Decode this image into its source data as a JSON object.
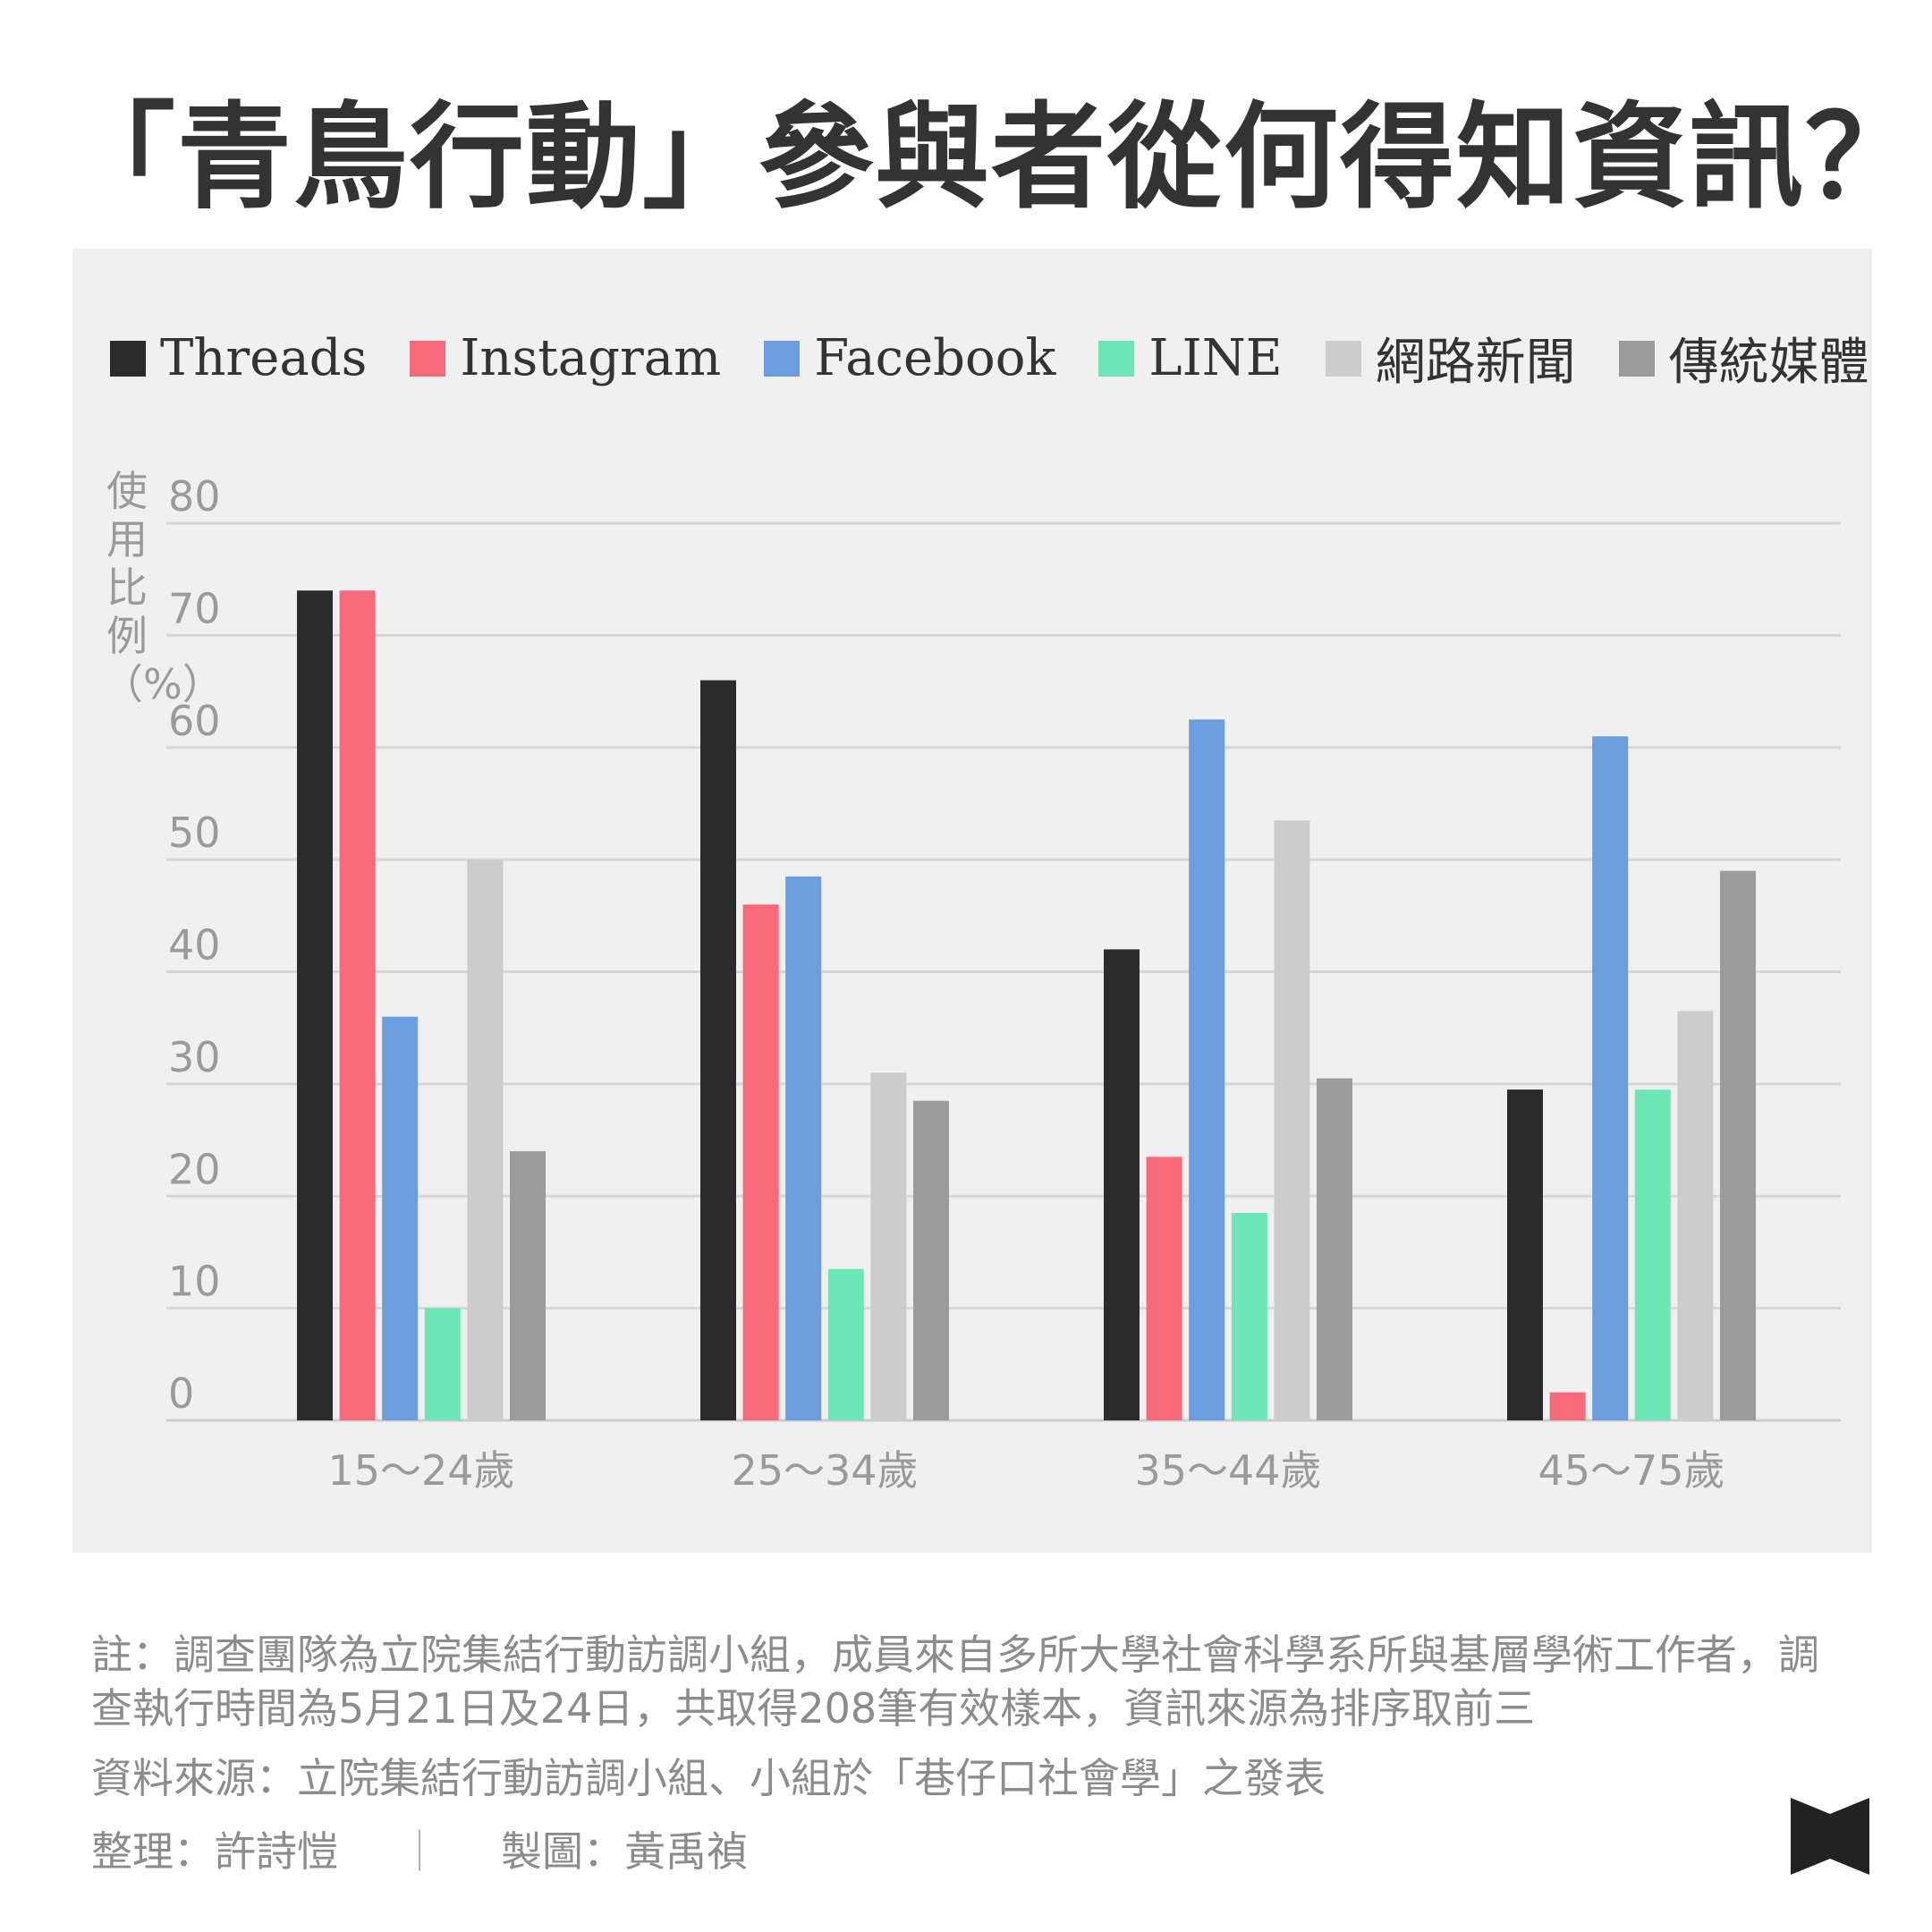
{
  "title": "「青鳥行動」參與者從何得知資訊？",
  "chart_data": {
    "type": "bar",
    "title": "「青鳥行動」參與者從何得知資訊？",
    "ylabel": "使用比例（%）",
    "xlabel": "",
    "ylim": [
      0,
      80
    ],
    "yticks": [
      0,
      10,
      20,
      30,
      40,
      50,
      60,
      70,
      80
    ],
    "grid": true,
    "legend_position": "top",
    "categories": [
      "15～24歲",
      "25～34歲",
      "35～44歲",
      "45～75歲"
    ],
    "series": [
      {
        "name": "Threads",
        "color": "#2b2b2b",
        "values": [
          74,
          66,
          42,
          29.5
        ]
      },
      {
        "name": "Instagram",
        "color": "#f86a7a",
        "values": [
          74,
          46,
          23.5,
          2.5
        ]
      },
      {
        "name": "Facebook",
        "color": "#6b9ddf",
        "values": [
          36,
          48.5,
          62.5,
          61
        ]
      },
      {
        "name": "LINE",
        "color": "#6ce6b5",
        "values": [
          10,
          13.5,
          18.5,
          29.5
        ]
      },
      {
        "name": "網路新聞",
        "color": "#cccccc",
        "values": [
          50,
          31,
          53.5,
          36.5
        ]
      },
      {
        "name": "傳統媒體",
        "color": "#9b9b9b",
        "values": [
          24,
          28.5,
          30.5,
          49
        ]
      }
    ]
  },
  "notes": {
    "note": "註：調查團隊為立院集結行動訪調小組，成員來自多所大學社會科學系所與基層學術工作者，調查執行時間為5月21日及24日，共取得208筆有效樣本，資訊來源為排序取前三",
    "source": "資料來源：立院集結行動訪調小組、小組於「巷仔口社會學」之發表",
    "compiler": "整理：許詩愷",
    "separator": "｜",
    "designer": "製圖：黃禹禎"
  }
}
